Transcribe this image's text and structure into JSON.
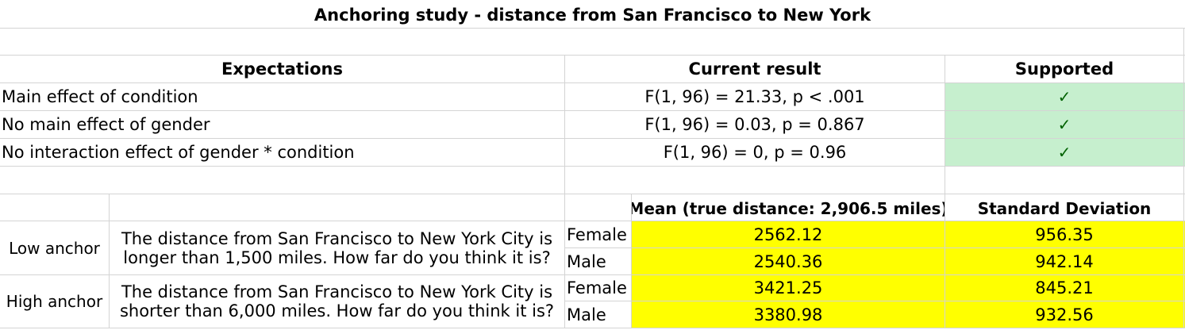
{
  "title": "Anchoring study - distance from San Francisco to New York",
  "expectations_table": {
    "headers": {
      "expectations": "Expectations",
      "current_result": "Current result",
      "supported": "Supported"
    },
    "rows": [
      {
        "expectation": "Main effect of condition",
        "result": "F(1, 96) = 21.33, p < .001",
        "supported": "✓"
      },
      {
        "expectation": "No main effect of gender",
        "result": "F(1, 96) = 0.03, p = 0.867",
        "supported": "✓"
      },
      {
        "expectation": "No interaction effect of gender * condition",
        "result": "F(1, 96) = 0, p = 0.96",
        "supported": "✓"
      }
    ]
  },
  "descriptives_table": {
    "headers": {
      "mean": "Mean (true distance: 2,906.5 miles)",
      "sd": "Standard Deviation"
    },
    "groups": [
      {
        "anchor": "Low anchor",
        "prompt": "The distance from San Francisco to New York City is longer than 1,500 miles. How far do you think it is?",
        "rows": [
          {
            "gender": "Female",
            "mean": "2562.12",
            "sd": "956.35"
          },
          {
            "gender": "Male",
            "mean": "2540.36",
            "sd": "942.14"
          }
        ]
      },
      {
        "anchor": "High anchor",
        "prompt": "The distance from San Francisco to New York City is shorter than 6,000 miles. How far do you think it is?",
        "rows": [
          {
            "gender": "Female",
            "mean": "3421.25",
            "sd": "845.21"
          },
          {
            "gender": "Male",
            "mean": "3380.98",
            "sd": "932.56"
          }
        ]
      }
    ]
  },
  "colors": {
    "supported_fill": "#c6efce",
    "check_color": "#006100",
    "highlight_fill": "#ffff00",
    "grid": "#d4d4d4"
  }
}
